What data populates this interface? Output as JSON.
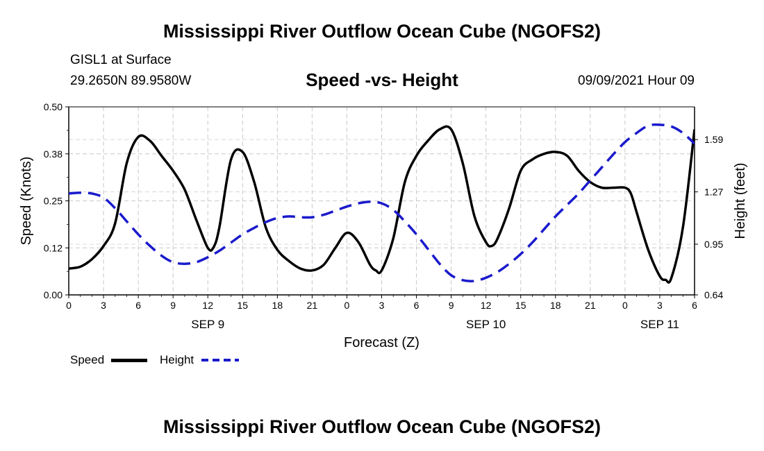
{
  "page": {
    "title_top": "Mississippi River Outflow Ocean Cube (NGOFS2)",
    "title_bottom": "Mississippi River Outflow Ocean Cube (NGOFS2)",
    "station": "GISL1 at Surface",
    "coords": "29.2650N  89.9580W",
    "subtitle": "Speed -vs- Height",
    "datetime": "09/09/2021 Hour 09"
  },
  "chart_data": {
    "type": "line",
    "xlabel": "Forecast (Z)",
    "ylabel": "Speed (Knots)",
    "y2label": "Height (feet)",
    "xlim": [
      0,
      54
    ],
    "ylim": [
      0,
      0.5
    ],
    "y2lim": [
      0.64,
      1.79
    ],
    "x_ticks": [
      0,
      3,
      6,
      9,
      12,
      15,
      18,
      21,
      24,
      27,
      30,
      33,
      36,
      39,
      42,
      45,
      48,
      51,
      54
    ],
    "x_tick_labels": [
      "0",
      "3",
      "6",
      "9",
      "12",
      "15",
      "18",
      "21",
      "0",
      "3",
      "6",
      "9",
      "12",
      "15",
      "18",
      "21",
      "0",
      "3",
      "6"
    ],
    "day_labels": [
      {
        "x": 12,
        "label": "SEP 9"
      },
      {
        "x": 36,
        "label": "SEP 10"
      },
      {
        "x": 51,
        "label": "SEP 11"
      }
    ],
    "y_ticks": [
      0.0,
      0.125,
      0.25,
      0.375,
      0.5
    ],
    "y_tick_labels": [
      "0.00",
      "0.12",
      "0.25",
      "0.38",
      "0.50"
    ],
    "y2_ticks": [
      0.64,
      0.95,
      1.27,
      1.59
    ],
    "y2_tick_labels": [
      "0.64",
      "0.95",
      "1.27",
      "1.59"
    ],
    "legend": [
      {
        "name": "Speed",
        "color": "#000000",
        "style": "solid"
      },
      {
        "name": "Height",
        "color": "#1a1acc",
        "style": "dashed"
      }
    ],
    "series": [
      {
        "name": "Speed",
        "axis": "left",
        "color": "#000000",
        "x": [
          0,
          1,
          2,
          3,
          4,
          5,
          6,
          7,
          8,
          9,
          10,
          11,
          12,
          12.5,
          13,
          14,
          15,
          16,
          17,
          18,
          19,
          20,
          21,
          22,
          23,
          24,
          25,
          26,
          26.5,
          27,
          28,
          29,
          30,
          31,
          32,
          33,
          34,
          35,
          36,
          36.5,
          37,
          38,
          39,
          40,
          41,
          42,
          43,
          44,
          45,
          46,
          47,
          48,
          48.5,
          49,
          50,
          51,
          51.5,
          52,
          53,
          54
        ],
        "values": [
          0.07,
          0.075,
          0.095,
          0.13,
          0.19,
          0.35,
          0.42,
          0.41,
          0.37,
          0.33,
          0.28,
          0.2,
          0.125,
          0.127,
          0.18,
          0.36,
          0.38,
          0.3,
          0.18,
          0.12,
          0.09,
          0.07,
          0.065,
          0.08,
          0.125,
          0.165,
          0.14,
          0.08,
          0.065,
          0.065,
          0.15,
          0.3,
          0.37,
          0.41,
          0.44,
          0.44,
          0.35,
          0.21,
          0.14,
          0.13,
          0.15,
          0.23,
          0.33,
          0.36,
          0.375,
          0.38,
          0.37,
          0.33,
          0.3,
          0.285,
          0.285,
          0.285,
          0.27,
          0.22,
          0.12,
          0.05,
          0.04,
          0.045,
          0.18,
          0.44
        ]
      },
      {
        "name": "Height",
        "axis": "right",
        "color": "#1a1acc",
        "x": [
          0,
          1,
          2,
          3,
          4,
          5,
          6,
          7,
          8,
          9,
          10,
          11,
          12,
          13,
          14,
          15,
          16,
          17,
          18,
          19,
          20,
          21,
          22,
          23,
          24,
          25,
          26,
          27,
          28,
          29,
          30,
          31,
          32,
          33,
          34,
          35,
          36,
          37,
          38,
          39,
          40,
          41,
          42,
          43,
          44,
          45,
          46,
          47,
          48,
          49,
          50,
          51,
          52,
          53,
          54
        ],
        "values": [
          1.26,
          1.265,
          1.26,
          1.235,
          1.17,
          1.09,
          1.01,
          0.94,
          0.88,
          0.84,
          0.83,
          0.84,
          0.87,
          0.91,
          0.96,
          1.01,
          1.05,
          1.085,
          1.11,
          1.12,
          1.115,
          1.115,
          1.13,
          1.155,
          1.18,
          1.2,
          1.21,
          1.2,
          1.16,
          1.09,
          1.01,
          0.92,
          0.83,
          0.76,
          0.73,
          0.725,
          0.745,
          0.78,
          0.83,
          0.89,
          0.96,
          1.04,
          1.12,
          1.19,
          1.26,
          1.34,
          1.42,
          1.5,
          1.575,
          1.63,
          1.675,
          1.68,
          1.67,
          1.63,
          1.565
        ]
      }
    ]
  }
}
